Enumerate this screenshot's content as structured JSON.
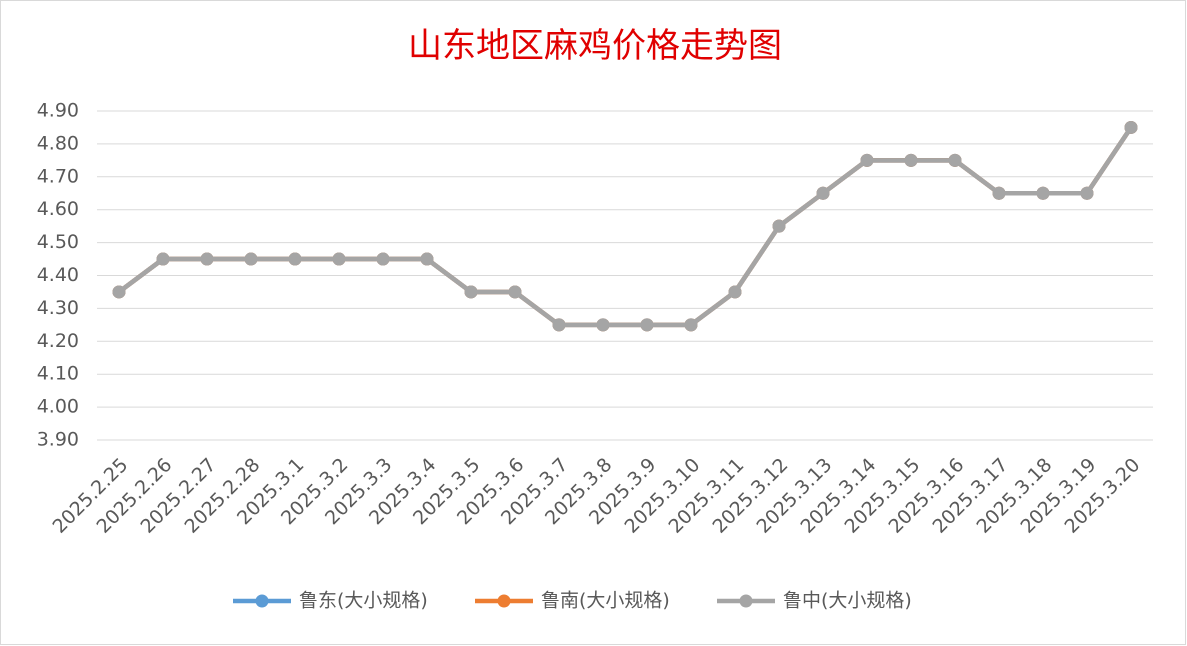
{
  "chart_data": {
    "type": "line",
    "title": "山东地区麻鸡价格走势图",
    "categories": [
      "2025.2.25",
      "2025.2.26",
      "2025.2.27",
      "2025.2.28",
      "2025.3.1",
      "2025.3.2",
      "2025.3.3",
      "2025.3.4",
      "2025.3.5",
      "2025.3.6",
      "2025.3.7",
      "2025.3.8",
      "2025.3.9",
      "2025.3.10",
      "2025.3.11",
      "2025.3.12",
      "2025.3.13",
      "2025.3.14",
      "2025.3.15",
      "2025.3.16",
      "2025.3.17",
      "2025.3.18",
      "2025.3.19",
      "2025.3.20"
    ],
    "series": [
      {
        "name": "鲁东(大小规格)",
        "color": "#5b9bd5",
        "values": [
          4.35,
          4.45,
          4.45,
          4.45,
          4.45,
          4.45,
          4.45,
          4.45,
          4.35,
          4.35,
          4.25,
          4.25,
          4.25,
          4.25,
          4.35,
          4.55,
          4.65,
          4.75,
          4.75,
          4.75,
          4.65,
          4.65,
          4.65,
          4.85
        ]
      },
      {
        "name": "鲁南(大小规格)",
        "color": "#ed7d31",
        "values": [
          4.35,
          4.45,
          4.45,
          4.45,
          4.45,
          4.45,
          4.45,
          4.45,
          4.35,
          4.35,
          4.25,
          4.25,
          4.25,
          4.25,
          4.35,
          4.55,
          4.65,
          4.75,
          4.75,
          4.75,
          4.65,
          4.65,
          4.65,
          4.85
        ]
      },
      {
        "name": "鲁中(大小规格)",
        "color": "#a5a5a5",
        "values": [
          4.35,
          4.45,
          4.45,
          4.45,
          4.45,
          4.45,
          4.45,
          4.45,
          4.35,
          4.35,
          4.25,
          4.25,
          4.25,
          4.25,
          4.35,
          4.55,
          4.65,
          4.75,
          4.75,
          4.75,
          4.65,
          4.65,
          4.65,
          4.85
        ]
      }
    ],
    "ylim": [
      3.9,
      4.9
    ],
    "yticks": [
      {
        "value": 3.9,
        "label": "3.90"
      },
      {
        "value": 4.0,
        "label": "4.00"
      },
      {
        "value": 4.1,
        "label": "4.10"
      },
      {
        "value": 4.2,
        "label": "4.20"
      },
      {
        "value": 4.3,
        "label": "4.30"
      },
      {
        "value": 4.4,
        "label": "4.40"
      },
      {
        "value": 4.5,
        "label": "4.50"
      },
      {
        "value": 4.6,
        "label": "4.60"
      },
      {
        "value": 4.7,
        "label": "4.70"
      },
      {
        "value": 4.8,
        "label": "4.80"
      },
      {
        "value": 4.9,
        "label": "4.90"
      }
    ],
    "grid": true,
    "legend": "bottom"
  }
}
